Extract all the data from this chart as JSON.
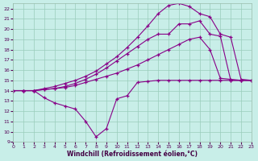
{
  "xlabel": "Windchill (Refroidissement éolien,°C)",
  "bg_color": "#c8eee8",
  "grid_color": "#99ccbb",
  "line_color": "#880088",
  "xlim": [
    0,
    23
  ],
  "ylim": [
    9,
    22.5
  ],
  "yticks": [
    9,
    10,
    11,
    12,
    13,
    14,
    15,
    16,
    17,
    18,
    19,
    20,
    21,
    22
  ],
  "xticks": [
    0,
    1,
    2,
    3,
    4,
    5,
    6,
    7,
    8,
    9,
    10,
    11,
    12,
    13,
    14,
    15,
    16,
    17,
    18,
    19,
    20,
    21,
    22,
    23
  ],
  "curve1_x": [
    0,
    1,
    2,
    3,
    4,
    5,
    6,
    7,
    8,
    9,
    10,
    11,
    12,
    13,
    14,
    15,
    16,
    17,
    18,
    19,
    20,
    21,
    22,
    23
  ],
  "curve1_y": [
    14.0,
    14.0,
    14.0,
    13.3,
    12.8,
    12.5,
    12.2,
    11.0,
    9.5,
    10.3,
    13.2,
    13.5,
    14.8,
    14.9,
    15.0,
    15.0,
    15.0,
    15.0,
    15.0,
    15.0,
    15.0,
    15.0,
    15.0,
    15.0
  ],
  "curve2_x": [
    0,
    1,
    2,
    3,
    4,
    5,
    6,
    7,
    8,
    9,
    10,
    11,
    12,
    13,
    14,
    15,
    16,
    17,
    18,
    19,
    20,
    21,
    22,
    23
  ],
  "curve2_y": [
    14.0,
    14.0,
    14.0,
    14.1,
    14.2,
    14.3,
    14.5,
    14.8,
    15.1,
    15.4,
    15.7,
    16.1,
    16.5,
    17.0,
    17.5,
    18.0,
    18.5,
    19.0,
    19.2,
    18.0,
    15.2,
    15.1,
    15.0,
    15.0
  ],
  "curve3_x": [
    0,
    1,
    2,
    3,
    4,
    5,
    6,
    7,
    8,
    9,
    10,
    11,
    12,
    13,
    14,
    15,
    16,
    17,
    18,
    19,
    20,
    21,
    22,
    23
  ],
  "curve3_y": [
    14.0,
    14.0,
    14.0,
    14.1,
    14.2,
    14.4,
    14.7,
    15.1,
    15.6,
    16.2,
    16.9,
    17.6,
    18.3,
    19.0,
    19.5,
    19.5,
    20.5,
    20.5,
    20.8,
    19.5,
    19.3,
    15.0,
    15.0,
    15.0
  ],
  "curve4_x": [
    0,
    1,
    2,
    3,
    4,
    5,
    6,
    7,
    8,
    9,
    10,
    11,
    12,
    13,
    14,
    15,
    16,
    17,
    18,
    19,
    20,
    21,
    22,
    23
  ],
  "curve4_y": [
    14.0,
    14.0,
    14.0,
    14.2,
    14.4,
    14.7,
    15.0,
    15.4,
    15.9,
    16.6,
    17.3,
    18.2,
    19.2,
    20.3,
    21.5,
    22.3,
    22.5,
    22.2,
    21.5,
    21.2,
    19.5,
    19.2,
    15.1,
    15.0
  ]
}
